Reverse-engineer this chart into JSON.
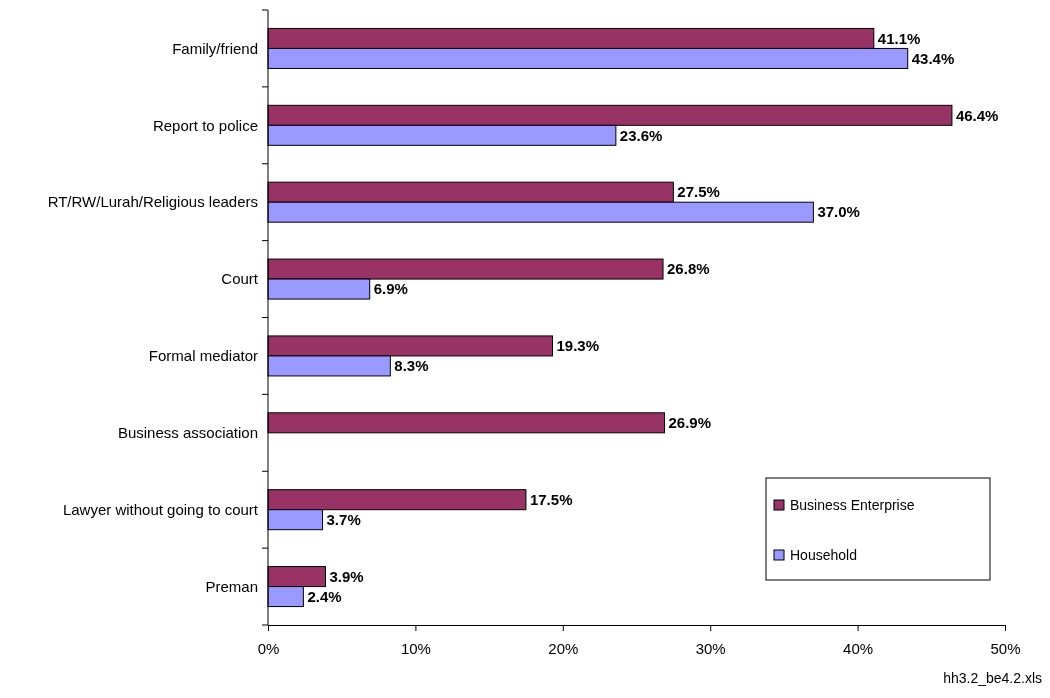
{
  "chart_data": {
    "type": "bar",
    "orientation": "horizontal",
    "categories": [
      "Family/friend",
      "Report to police",
      "RT/RW/Lurah/Religious leaders",
      "Court",
      "Formal mediator",
      "Business association",
      "Lawyer without going to court",
      "Preman"
    ],
    "series": [
      {
        "name": "Business Enterprise",
        "color": "#993366",
        "values": [
          41.1,
          46.4,
          27.5,
          26.8,
          19.3,
          26.9,
          17.5,
          3.9
        ],
        "value_labels": [
          "41.1%",
          "46.4%",
          "27.5%",
          "26.8%",
          "19.3%",
          "26.9%",
          "17.5%",
          "3.9%"
        ]
      },
      {
        "name": "Household",
        "color": "#9999ff",
        "values": [
          43.4,
          23.6,
          37.0,
          6.9,
          8.3,
          null,
          3.7,
          2.4
        ],
        "value_labels": [
          "43.4%",
          "23.6%",
          "37.0%",
          "6.9%",
          "8.3%",
          null,
          "3.7%",
          "2.4%"
        ]
      }
    ],
    "xlim": [
      0,
      50
    ],
    "xticks": [
      {
        "value": 0,
        "label": "0%"
      },
      {
        "value": 10,
        "label": "10%"
      },
      {
        "value": 20,
        "label": "20%"
      },
      {
        "value": 30,
        "label": "30%"
      },
      {
        "value": 40,
        "label": "40%"
      },
      {
        "value": 50,
        "label": "50%"
      }
    ],
    "grid": false,
    "legend": "bottom right",
    "annotations": [
      "hh3.2_be4.2.xls"
    ]
  }
}
